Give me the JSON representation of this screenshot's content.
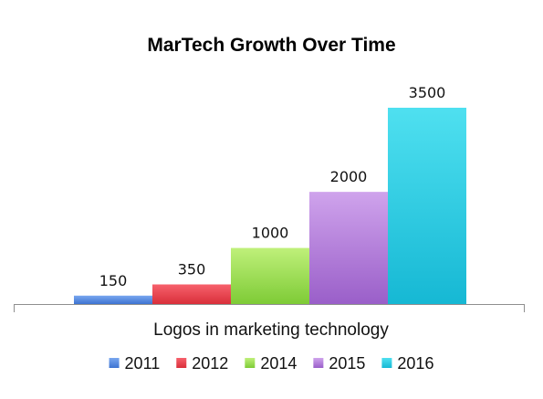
{
  "chart_data": {
    "type": "bar",
    "title": "MarTech Growth Over Time",
    "xlabel": "Logos in marketing technology",
    "ylabel": "",
    "categories": [
      "Logos in marketing technology"
    ],
    "series": [
      {
        "name": "2011",
        "values": [
          150
        ],
        "color_top": "#79a7ef",
        "color_bottom": "#3d73d1"
      },
      {
        "name": "2012",
        "values": [
          350
        ],
        "color_top": "#f7616c",
        "color_bottom": "#d92f3a"
      },
      {
        "name": "2014",
        "values": [
          1000
        ],
        "color_top": "#bff07a",
        "color_bottom": "#7ecb36"
      },
      {
        "name": "2015",
        "values": [
          2000
        ],
        "color_top": "#cfa3ec",
        "color_bottom": "#9a5fc9"
      },
      {
        "name": "2016",
        "values": [
          3500
        ],
        "color_top": "#4fe0f0",
        "color_bottom": "#16b8d4"
      }
    ],
    "ylim": [
      0,
      4000
    ],
    "grid": false,
    "legend": "bottom",
    "data_labels": true
  }
}
